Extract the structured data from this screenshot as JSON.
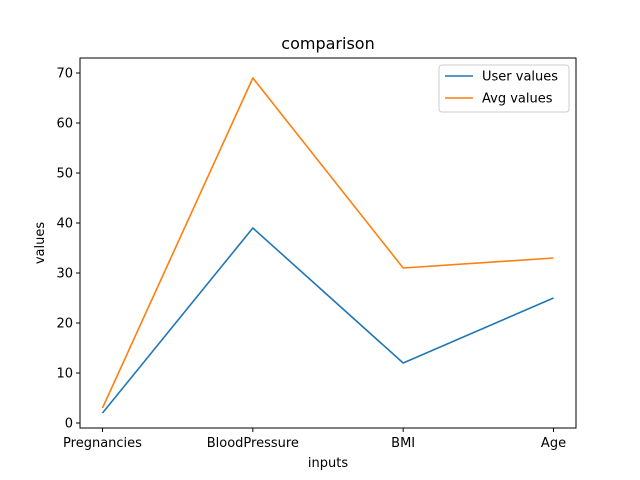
{
  "chart_data": {
    "type": "line",
    "title": "comparison",
    "xlabel": "inputs",
    "ylabel": "values",
    "categories": [
      "Pregnancies",
      "BloodPressure",
      "BMI",
      "Age"
    ],
    "ylim": [
      -1,
      73
    ],
    "yticks": [
      0,
      10,
      20,
      30,
      40,
      50,
      60,
      70
    ],
    "grid": false,
    "legend_position": "top-right",
    "series": [
      {
        "name": "User values",
        "color": "#1f77b4",
        "values": [
          2,
          39,
          12,
          25
        ]
      },
      {
        "name": "Avg values",
        "color": "#ff7f0e",
        "values": [
          3,
          69,
          31,
          33
        ]
      }
    ]
  }
}
